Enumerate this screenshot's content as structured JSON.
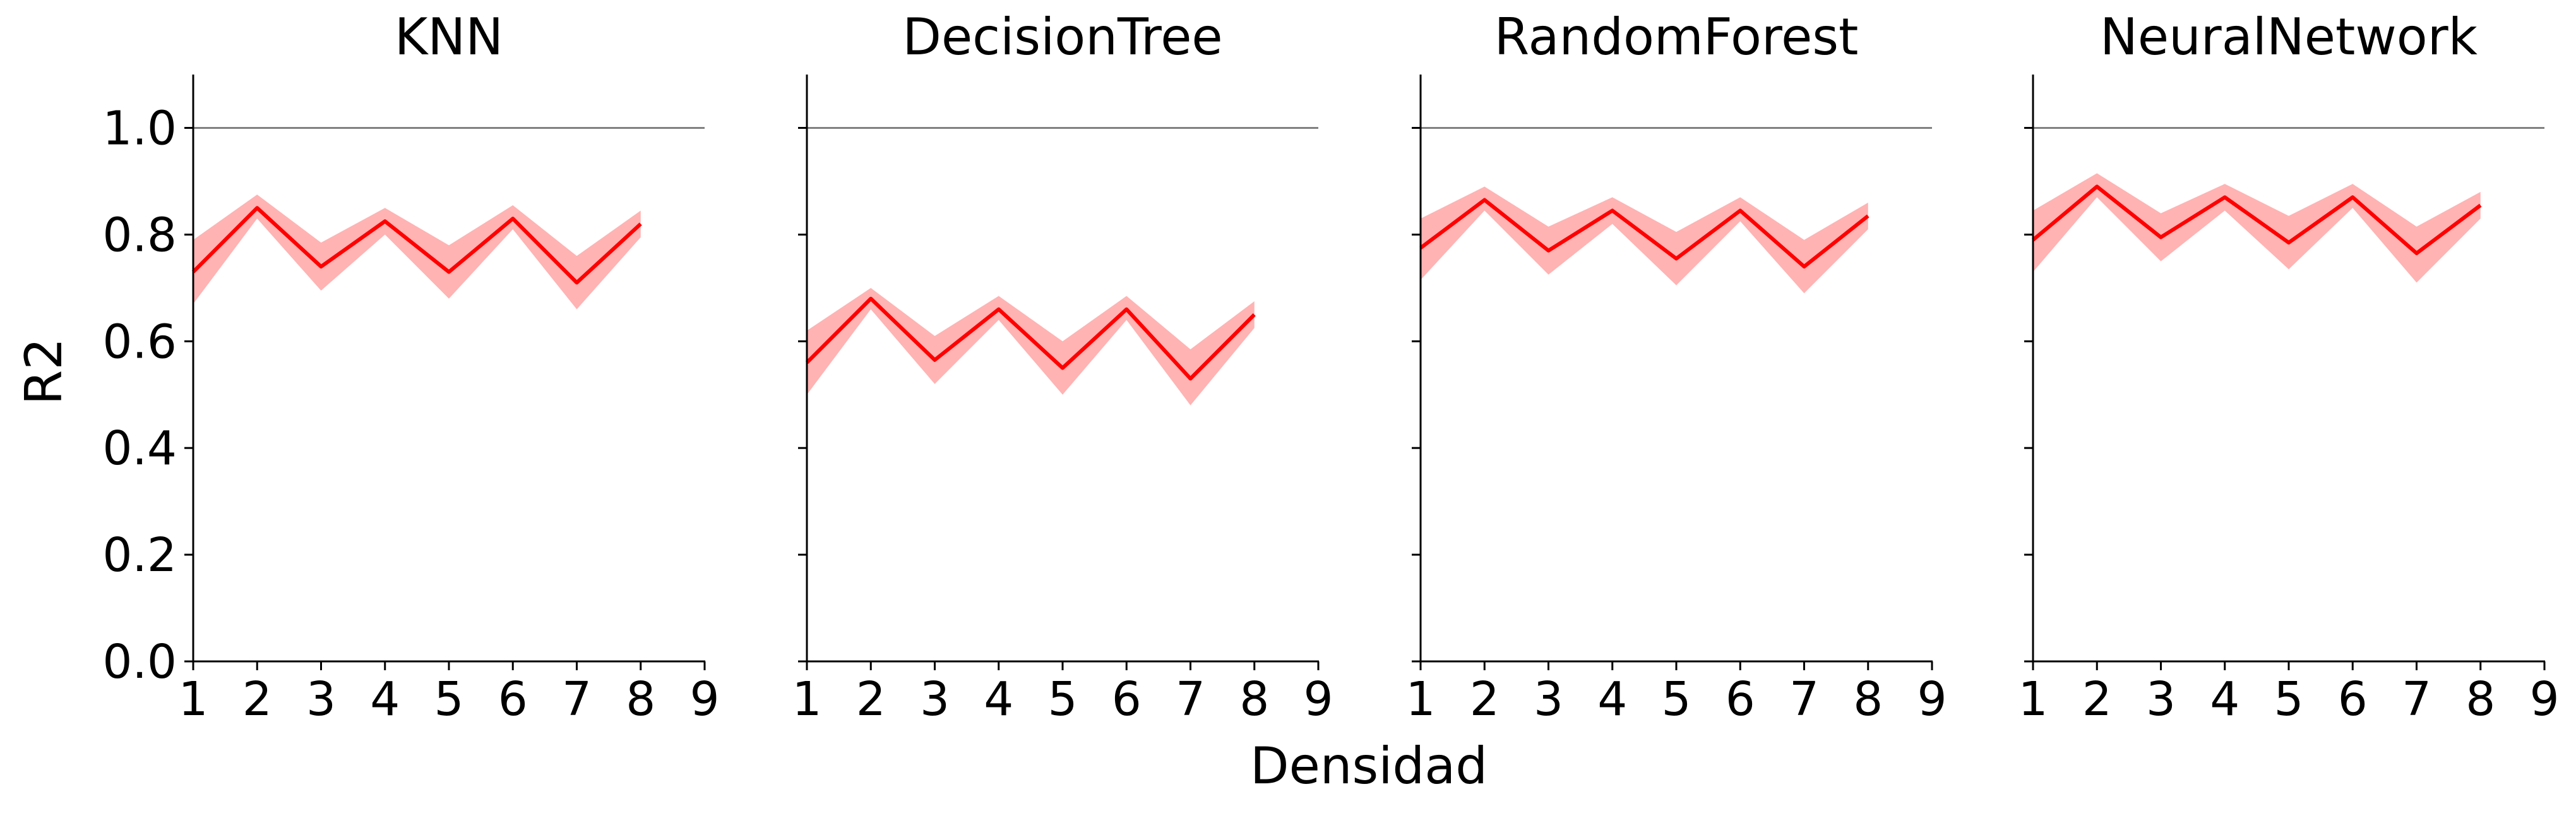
{
  "figure": {
    "ylabel": "R2",
    "xlabel": "Densidad"
  },
  "colors": {
    "line": "#ff0000",
    "band": "#ffb3b3",
    "reference": "#808080",
    "axis": "#000000"
  },
  "chart_data": [
    {
      "type": "line",
      "title": "KNN",
      "x": [
        1,
        2,
        3,
        4,
        5,
        6,
        7,
        8
      ],
      "series": [
        {
          "values": [
            0.73,
            0.85,
            0.74,
            0.825,
            0.73,
            0.83,
            0.71,
            0.82
          ],
          "lower": [
            0.67,
            0.83,
            0.695,
            0.8,
            0.68,
            0.81,
            0.66,
            0.795
          ],
          "upper": [
            0.79,
            0.875,
            0.785,
            0.85,
            0.78,
            0.855,
            0.76,
            0.845
          ]
        }
      ],
      "reference_line": 1.0,
      "xlim": [
        1,
        9
      ],
      "ylim": [
        0,
        1.1
      ],
      "xticks": [
        "1",
        "2",
        "3",
        "4",
        "5",
        "6",
        "7",
        "8",
        "9"
      ],
      "yticks": [
        "0.0",
        "0.2",
        "0.4",
        "0.6",
        "0.8",
        "1.0"
      ],
      "grid": false
    },
    {
      "type": "line",
      "title": "DecisionTree",
      "x": [
        1,
        2,
        3,
        4,
        5,
        6,
        7,
        8
      ],
      "series": [
        {
          "values": [
            0.56,
            0.68,
            0.565,
            0.66,
            0.55,
            0.66,
            0.53,
            0.65
          ],
          "lower": [
            0.5,
            0.66,
            0.52,
            0.64,
            0.5,
            0.64,
            0.48,
            0.625
          ],
          "upper": [
            0.62,
            0.7,
            0.61,
            0.685,
            0.6,
            0.685,
            0.585,
            0.675
          ]
        }
      ],
      "reference_line": 1.0,
      "xlim": [
        1,
        9
      ],
      "ylim": [
        0,
        1.1
      ],
      "xticks": [
        "1",
        "2",
        "3",
        "4",
        "5",
        "6",
        "7",
        "8",
        "9"
      ],
      "yticks": [
        "0.0",
        "0.2",
        "0.4",
        "0.6",
        "0.8",
        "1.0"
      ],
      "grid": false
    },
    {
      "type": "line",
      "title": "RandomForest",
      "x": [
        1,
        2,
        3,
        4,
        5,
        6,
        7,
        8
      ],
      "series": [
        {
          "values": [
            0.775,
            0.865,
            0.77,
            0.845,
            0.755,
            0.845,
            0.74,
            0.835
          ],
          "lower": [
            0.715,
            0.845,
            0.725,
            0.82,
            0.705,
            0.825,
            0.69,
            0.81
          ],
          "upper": [
            0.83,
            0.89,
            0.815,
            0.87,
            0.805,
            0.87,
            0.79,
            0.86
          ]
        }
      ],
      "reference_line": 1.0,
      "xlim": [
        1,
        9
      ],
      "ylim": [
        0,
        1.1
      ],
      "xticks": [
        "1",
        "2",
        "3",
        "4",
        "5",
        "6",
        "7",
        "8",
        "9"
      ],
      "yticks": [
        "0.0",
        "0.2",
        "0.4",
        "0.6",
        "0.8",
        "1.0"
      ],
      "grid": false
    },
    {
      "type": "line",
      "title": "NeuralNetwork",
      "x": [
        1,
        2,
        3,
        4,
        5,
        6,
        7,
        8
      ],
      "series": [
        {
          "values": [
            0.79,
            0.89,
            0.795,
            0.87,
            0.785,
            0.87,
            0.765,
            0.855
          ],
          "lower": [
            0.73,
            0.87,
            0.75,
            0.845,
            0.735,
            0.85,
            0.71,
            0.83
          ],
          "upper": [
            0.845,
            0.915,
            0.84,
            0.895,
            0.835,
            0.895,
            0.815,
            0.88
          ]
        }
      ],
      "reference_line": 1.0,
      "xlim": [
        1,
        9
      ],
      "ylim": [
        0,
        1.1
      ],
      "xticks": [
        "1",
        "2",
        "3",
        "4",
        "5",
        "6",
        "7",
        "8",
        "9"
      ],
      "yticks": [
        "0.0",
        "0.2",
        "0.4",
        "0.6",
        "0.8",
        "1.0"
      ],
      "grid": false
    }
  ]
}
